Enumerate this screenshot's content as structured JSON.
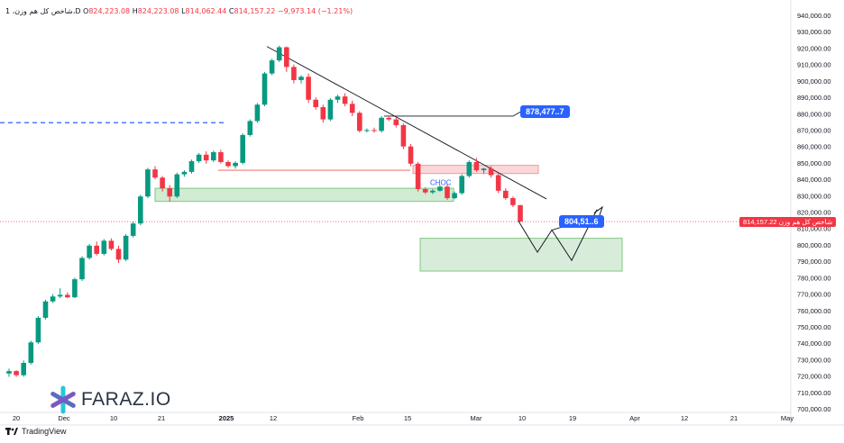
{
  "header": {
    "symbol": "1 ،شاخص کل هم وزن،D",
    "open_label": "O",
    "open": "824,223.08",
    "high_label": "H",
    "high": "824,223.08",
    "low_label": "L",
    "low": "814,062.44",
    "close_label": "C",
    "close": "814,157.22",
    "change": "−9,973.14 (−1.21%)"
  },
  "footer": {
    "brand": "TradingView",
    "logo_text": "FARAZ.IO"
  },
  "colors": {
    "up": "#089981",
    "down": "#f23645",
    "accent": "#2962ff"
  },
  "chart_data": {
    "type": "candlestick",
    "ylim": [
      700000,
      940000
    ],
    "y_ticks": [
      "940,000.00",
      "930,000.00",
      "920,000.00",
      "910,000.00",
      "900,000.00",
      "890,000.00",
      "880,000.00",
      "870,000.00",
      "860,000.00",
      "850,000.00",
      "840,000.00",
      "830,000.00",
      "820,000.00",
      "810,000.00",
      "800,000.00",
      "790,000.00",
      "780,000.00",
      "770,000.00",
      "760,000.00",
      "750,000.00",
      "740,000.00",
      "730,000.00",
      "720,000.00",
      "710,000.00",
      "700,000.00"
    ],
    "x_ticks": [
      "20",
      "Dec",
      "10",
      "21",
      "2025",
      "12",
      "Feb",
      "15",
      "Mar",
      "10",
      "19",
      "Apr",
      "12",
      "21",
      "May"
    ],
    "last_price_label": "814,157.22",
    "last_price_name": "شاخص کل هم وزن",
    "last_price": 814157.22,
    "candles": [
      {
        "o": 721500,
        "h": 724500,
        "l": 719500,
        "c": 723000
      },
      {
        "o": 723000,
        "h": 723500,
        "l": 719500,
        "c": 720500
      },
      {
        "o": 720500,
        "h": 729500,
        "l": 719500,
        "c": 728000
      },
      {
        "o": 728000,
        "h": 741500,
        "l": 727000,
        "c": 740500
      },
      {
        "o": 740500,
        "h": 756500,
        "l": 739500,
        "c": 755500
      },
      {
        "o": 755500,
        "h": 766500,
        "l": 754500,
        "c": 765500
      },
      {
        "o": 765500,
        "h": 770000,
        "l": 764500,
        "c": 768500
      },
      {
        "o": 768500,
        "h": 773500,
        "l": 767500,
        "c": 769500
      },
      {
        "o": 769500,
        "h": 771000,
        "l": 767500,
        "c": 768000
      },
      {
        "o": 768000,
        "h": 780000,
        "l": 767500,
        "c": 779000
      },
      {
        "o": 779000,
        "h": 793000,
        "l": 778000,
        "c": 792000
      },
      {
        "o": 792000,
        "h": 800500,
        "l": 791000,
        "c": 799500
      },
      {
        "o": 799500,
        "h": 802000,
        "l": 793500,
        "c": 794500
      },
      {
        "o": 794500,
        "h": 803500,
        "l": 793500,
        "c": 802500
      },
      {
        "o": 802500,
        "h": 804000,
        "l": 796500,
        "c": 797500
      },
      {
        "o": 797500,
        "h": 799500,
        "l": 789000,
        "c": 791000
      },
      {
        "o": 791000,
        "h": 806500,
        "l": 790000,
        "c": 805500
      },
      {
        "o": 805500,
        "h": 814000,
        "l": 804500,
        "c": 813000
      },
      {
        "o": 813000,
        "h": 830500,
        "l": 812000,
        "c": 829500
      },
      {
        "o": 829500,
        "h": 847000,
        "l": 828500,
        "c": 846000
      },
      {
        "o": 846000,
        "h": 848000,
        "l": 840000,
        "c": 841000
      },
      {
        "o": 841000,
        "h": 842000,
        "l": 832500,
        "c": 834500
      },
      {
        "o": 834500,
        "h": 836500,
        "l": 826500,
        "c": 829500
      },
      {
        "o": 829500,
        "h": 844000,
        "l": 828500,
        "c": 843000
      },
      {
        "o": 843000,
        "h": 845500,
        "l": 841500,
        "c": 844500
      },
      {
        "o": 844500,
        "h": 852000,
        "l": 843500,
        "c": 851000
      },
      {
        "o": 851000,
        "h": 856000,
        "l": 850000,
        "c": 855000
      },
      {
        "o": 855000,
        "h": 857000,
        "l": 849500,
        "c": 851500
      },
      {
        "o": 851500,
        "h": 857500,
        "l": 850500,
        "c": 856500
      },
      {
        "o": 856500,
        "h": 858000,
        "l": 849500,
        "c": 850500
      },
      {
        "o": 850500,
        "h": 851500,
        "l": 847000,
        "c": 848000
      },
      {
        "o": 848000,
        "h": 851000,
        "l": 846500,
        "c": 850000
      },
      {
        "o": 850000,
        "h": 868000,
        "l": 849000,
        "c": 867000
      },
      {
        "o": 867000,
        "h": 876500,
        "l": 866000,
        "c": 875500
      },
      {
        "o": 875500,
        "h": 886500,
        "l": 874500,
        "c": 885500
      },
      {
        "o": 885500,
        "h": 905500,
        "l": 884500,
        "c": 904500
      },
      {
        "o": 904500,
        "h": 913500,
        "l": 903500,
        "c": 912500
      },
      {
        "o": 912500,
        "h": 921500,
        "l": 911500,
        "c": 920500
      },
      {
        "o": 920500,
        "h": 921000,
        "l": 905500,
        "c": 908500
      },
      {
        "o": 908500,
        "h": 910000,
        "l": 898500,
        "c": 900500
      },
      {
        "o": 900500,
        "h": 903500,
        "l": 898500,
        "c": 902500
      },
      {
        "o": 902500,
        "h": 904500,
        "l": 886500,
        "c": 888500
      },
      {
        "o": 888500,
        "h": 890000,
        "l": 882500,
        "c": 884000
      },
      {
        "o": 884000,
        "h": 885500,
        "l": 874500,
        "c": 876500
      },
      {
        "o": 876500,
        "h": 889500,
        "l": 875500,
        "c": 888500
      },
      {
        "o": 888500,
        "h": 891500,
        "l": 886500,
        "c": 890500
      },
      {
        "o": 890500,
        "h": 892500,
        "l": 884500,
        "c": 886000
      },
      {
        "o": 886000,
        "h": 888000,
        "l": 878500,
        "c": 880500
      },
      {
        "o": 880500,
        "h": 881500,
        "l": 868500,
        "c": 869500
      },
      {
        "o": 869500,
        "h": 871000,
        "l": 868500,
        "c": 870000
      },
      {
        "o": 870000,
        "h": 871500,
        "l": 868500,
        "c": 869500
      },
      {
        "o": 869500,
        "h": 878500,
        "l": 868500,
        "c": 877500
      },
      {
        "o": 877500,
        "h": 878500,
        "l": 875500,
        "c": 876500
      },
      {
        "o": 876500,
        "h": 878000,
        "l": 871500,
        "c": 873000
      },
      {
        "o": 873000,
        "h": 874000,
        "l": 858500,
        "c": 860000
      },
      {
        "o": 860000,
        "h": 861500,
        "l": 848000,
        "c": 849500
      },
      {
        "o": 849500,
        "h": 850500,
        "l": 832500,
        "c": 834000
      },
      {
        "o": 834000,
        "h": 835000,
        "l": 831000,
        "c": 832000
      },
      {
        "o": 832000,
        "h": 834000,
        "l": 831000,
        "c": 833000
      },
      {
        "o": 833000,
        "h": 836500,
        "l": 832500,
        "c": 835500
      },
      {
        "o": 835500,
        "h": 837000,
        "l": 827500,
        "c": 828500
      },
      {
        "o": 828500,
        "h": 832500,
        "l": 828000,
        "c": 831500
      },
      {
        "o": 831500,
        "h": 843000,
        "l": 830500,
        "c": 842000
      },
      {
        "o": 842000,
        "h": 851500,
        "l": 841000,
        "c": 850500
      },
      {
        "o": 850500,
        "h": 853000,
        "l": 844500,
        "c": 845500
      },
      {
        "o": 845500,
        "h": 847000,
        "l": 843500,
        "c": 846500
      },
      {
        "o": 846500,
        "h": 848000,
        "l": 841000,
        "c": 842500
      },
      {
        "o": 842500,
        "h": 843500,
        "l": 831500,
        "c": 833000
      },
      {
        "o": 833000,
        "h": 834500,
        "l": 827500,
        "c": 828500
      },
      {
        "o": 828500,
        "h": 829500,
        "l": 823000,
        "c": 824223.08
      },
      {
        "o": 824223.08,
        "h": 824223.08,
        "l": 814062.44,
        "c": 814157.22
      }
    ],
    "annotations": {
      "dashed_level": 874500,
      "callout_upper": "878,477..7",
      "callout_upper_level": 878500,
      "callout_lower": "804,51..6",
      "choch_label": "CHOC",
      "supply_zone": {
        "top": 848500,
        "bottom": 843500
      },
      "demand_zone_left": {
        "top": 834500,
        "bottom": 826500
      },
      "demand_zone_right": {
        "top": 804000,
        "bottom": 784000
      },
      "resistance_line_level": 845500,
      "projection_path": [
        814500,
        795500,
        809000,
        790500,
        821500
      ]
    }
  }
}
